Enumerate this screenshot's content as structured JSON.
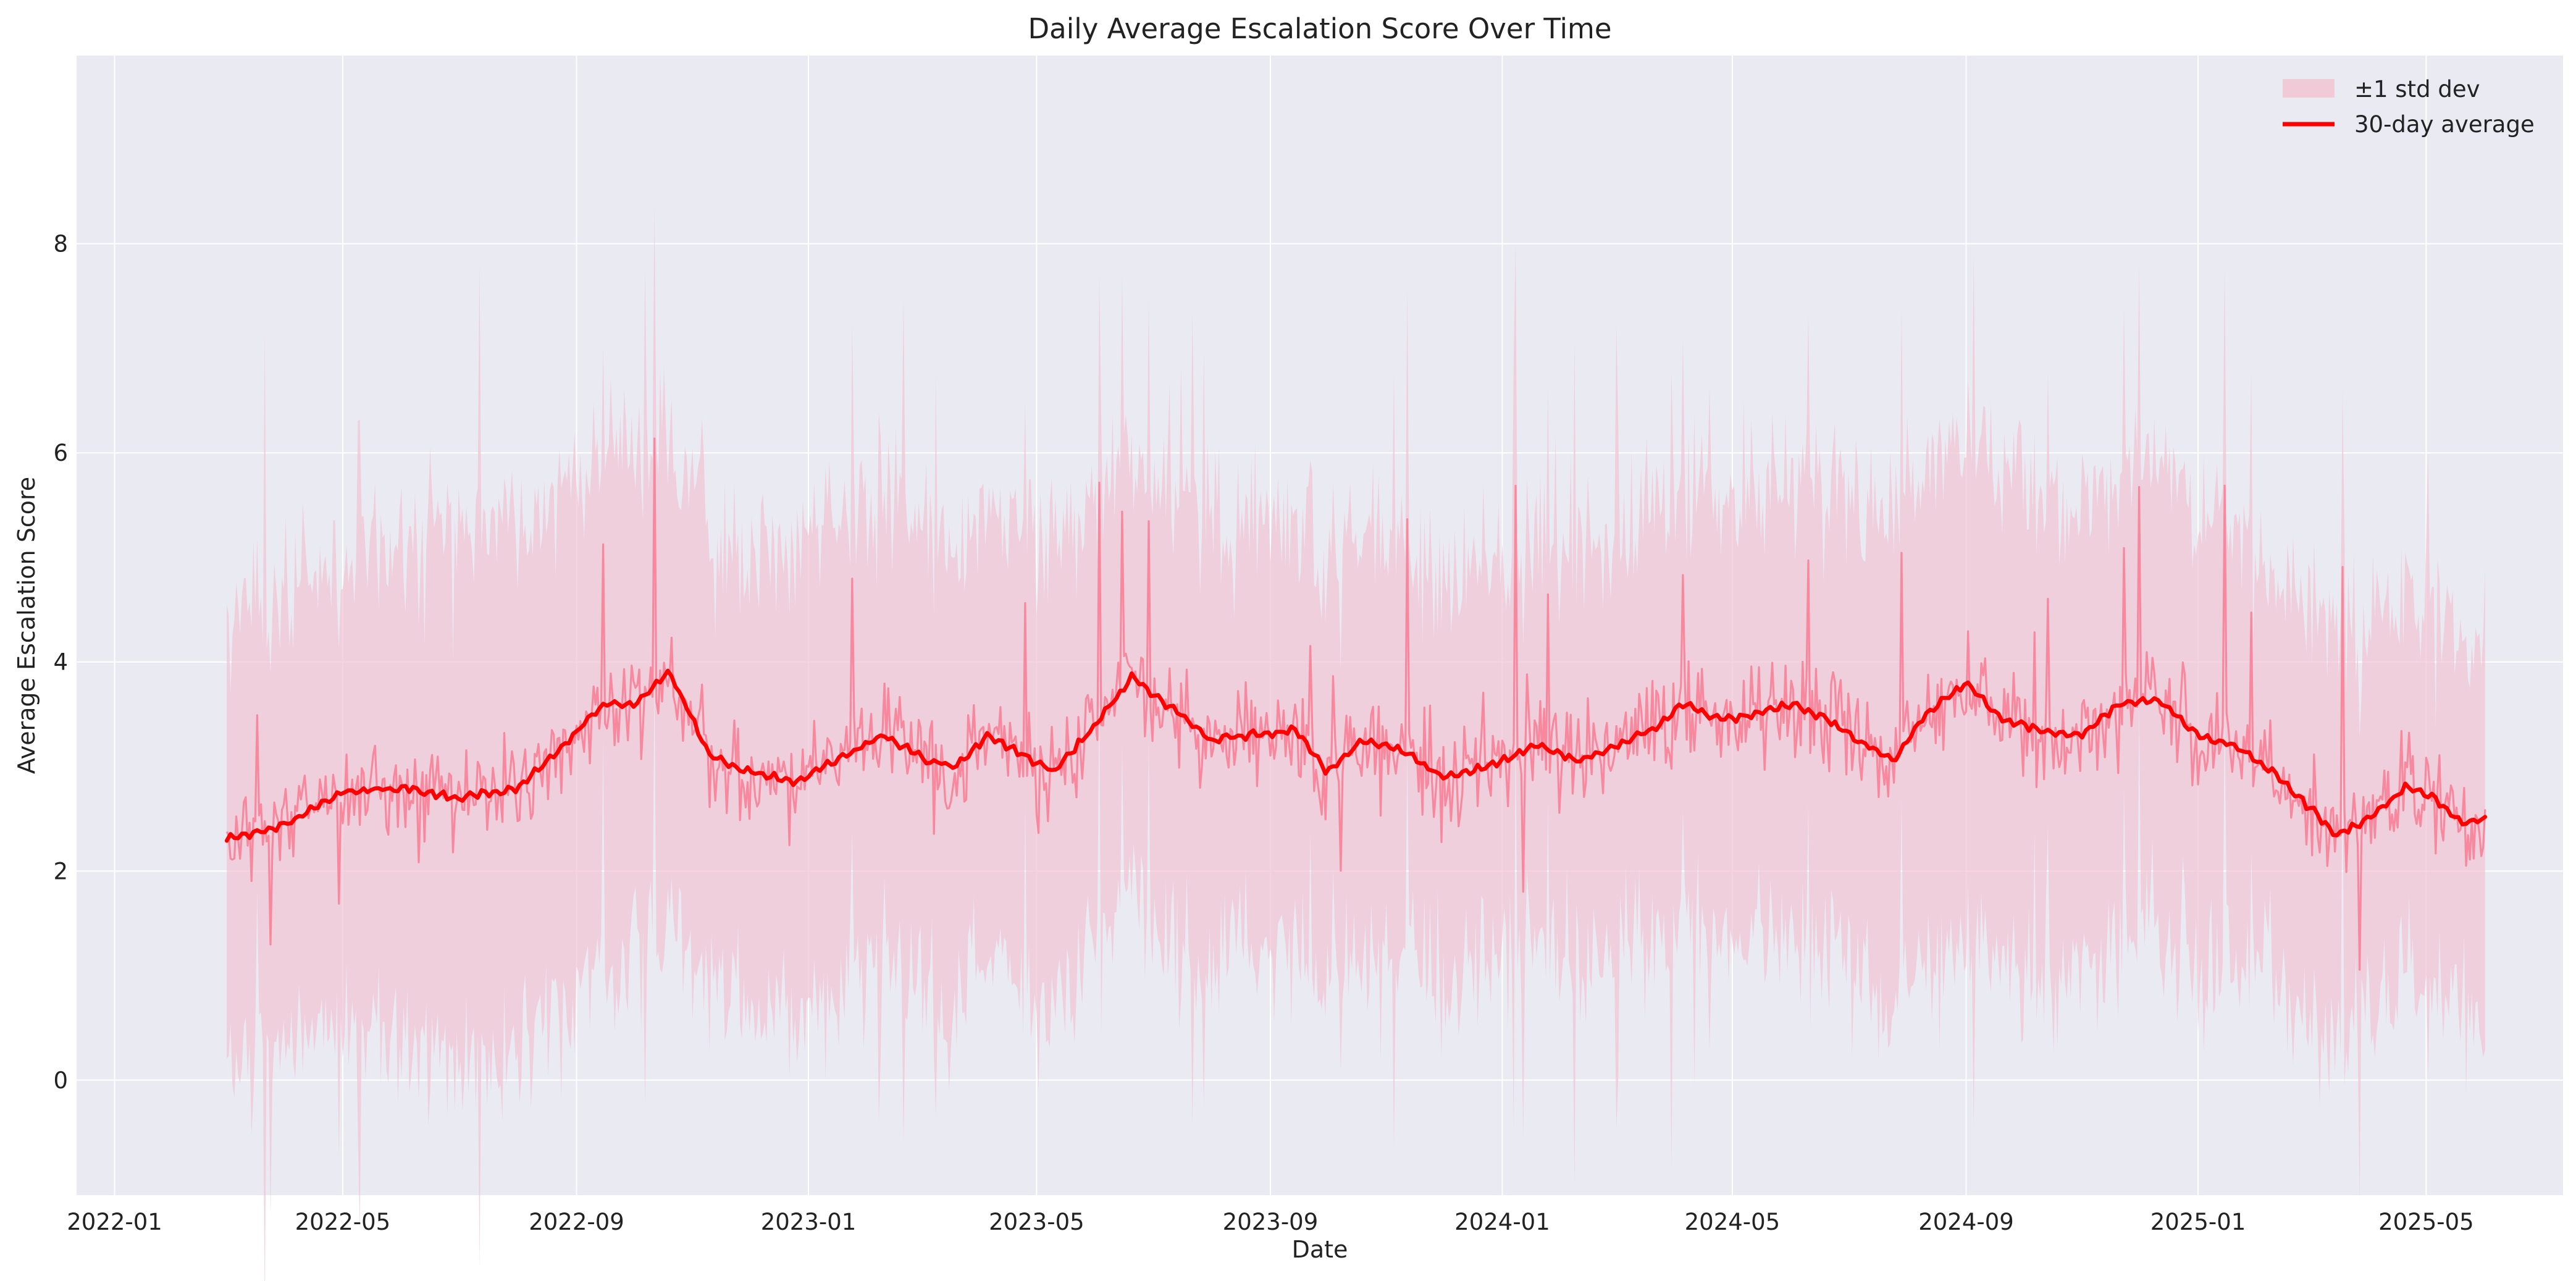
{
  "chart_data": {
    "type": "line",
    "title": "Daily Average Escalation Score Over Time",
    "xlabel": "Date",
    "ylabel": "Average Escalation Score",
    "xlim": [
      "2021-12-12",
      "2025-07-12"
    ],
    "ylim": [
      -1.1,
      9.8
    ],
    "x_ticks": [
      "2022-01",
      "2022-05",
      "2022-09",
      "2023-01",
      "2023-05",
      "2023-09",
      "2024-01",
      "2024-05",
      "2024-09",
      "2025-01",
      "2025-05"
    ],
    "y_ticks": [
      0,
      2,
      4,
      6,
      8
    ],
    "grid": true,
    "legend": {
      "position": "top-right",
      "entries": [
        "±1 std dev",
        "30-day average"
      ]
    },
    "colors": {
      "band": "#f2c6d4",
      "daily": "#f77f97",
      "rolling": "#ff0000",
      "plot_bg": "#eaeaf2"
    },
    "date_range": {
      "start": "2022-03-01",
      "end": "2025-06-01"
    },
    "series": [
      {
        "name": "30-day average",
        "x": [
          "2022-03-01",
          "2022-04-01",
          "2022-05-01",
          "2022-06-01",
          "2022-07-01",
          "2022-08-01",
          "2022-08-20",
          "2022-09-15",
          "2022-10-01",
          "2022-10-20",
          "2022-11-10",
          "2022-12-01",
          "2022-12-25",
          "2023-01-15",
          "2023-02-10",
          "2023-03-05",
          "2023-03-20",
          "2023-04-05",
          "2023-04-25",
          "2023-05-10",
          "2023-06-01",
          "2023-06-20",
          "2023-07-15",
          "2023-08-01",
          "2023-08-20",
          "2023-09-15",
          "2023-10-01",
          "2023-10-20",
          "2023-11-10",
          "2023-12-01",
          "2023-12-25",
          "2024-01-20",
          "2024-02-10",
          "2024-03-01",
          "2024-03-20",
          "2024-04-05",
          "2024-04-25",
          "2024-05-15",
          "2024-06-01",
          "2024-06-20",
          "2024-07-10",
          "2024-07-25",
          "2024-08-10",
          "2024-09-01",
          "2024-09-20",
          "2024-10-10",
          "2024-11-01",
          "2024-11-20",
          "2024-12-10",
          "2025-01-01",
          "2025-01-20",
          "2025-02-10",
          "2025-03-01",
          "2025-03-15",
          "2025-04-01",
          "2025-04-20",
          "2025-05-05",
          "2025-05-20",
          "2025-06-01"
        ],
        "values": [
          2.3,
          2.45,
          2.75,
          2.8,
          2.7,
          2.8,
          3.1,
          3.6,
          3.6,
          3.9,
          3.1,
          2.95,
          2.85,
          3.05,
          3.3,
          3.05,
          3.0,
          3.3,
          3.1,
          2.95,
          3.4,
          3.85,
          3.5,
          3.25,
          3.3,
          3.35,
          2.95,
          3.25,
          3.15,
          2.9,
          3.0,
          3.2,
          3.05,
          3.2,
          3.35,
          3.6,
          3.45,
          3.5,
          3.6,
          3.45,
          3.2,
          3.05,
          3.5,
          3.8,
          3.45,
          3.35,
          3.3,
          3.6,
          3.65,
          3.3,
          3.2,
          2.95,
          2.6,
          2.35,
          2.5,
          2.8,
          2.7,
          2.45,
          2.5
        ]
      },
      {
        "name": "±1 std dev",
        "x": [
          "2022-03-01",
          "2022-08-01",
          "2022-11-01",
          "2023-06-01",
          "2024-01-01",
          "2024-06-01",
          "2024-09-01",
          "2024-12-01",
          "2025-03-01",
          "2025-06-01"
        ],
        "lower": [
          0.4,
          0.3,
          0.8,
          1.1,
          1.2,
          1.0,
          0.9,
          1.2,
          0.7,
          1.0
        ],
        "upper": [
          4.5,
          5.5,
          5.3,
          5.4,
          5.0,
          5.4,
          5.8,
          5.6,
          4.6,
          4.5
        ]
      }
    ]
  }
}
